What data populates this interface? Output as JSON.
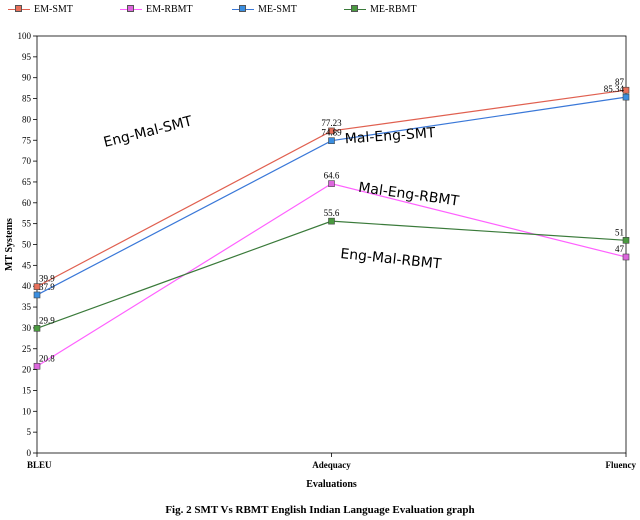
{
  "chart_data": {
    "type": "line",
    "title": "",
    "xlabel": "Evaluations",
    "ylabel": "MT Systems",
    "categories": [
      "BLEU",
      "Adequacy",
      "Fluency"
    ],
    "ylim": [
      0,
      100
    ],
    "yticks": [
      0,
      5,
      10,
      15,
      20,
      25,
      30,
      35,
      40,
      45,
      50,
      55,
      60,
      65,
      70,
      75,
      80,
      85,
      90,
      95,
      100
    ],
    "grid": false,
    "legend_position": "top-left",
    "series": [
      {
        "name": "EM-SMT",
        "color": "#e06050",
        "marker": "#e8705a",
        "values": [
          39.9,
          77.23,
          87
        ],
        "labels": [
          "39.9",
          "77.23",
          "87"
        ]
      },
      {
        "name": "EM-RBMT",
        "color": "#ff60ff",
        "marker": "#dd66dd",
        "values": [
          20.8,
          64.6,
          47
        ],
        "labels": [
          "20.8",
          "64.6",
          "47"
        ]
      },
      {
        "name": "ME-SMT",
        "color": "#3a78d8",
        "marker": "#3a8ee0",
        "values": [
          37.9,
          74.89,
          85.34
        ],
        "labels": [
          "37.9",
          "74.89",
          "85.34"
        ]
      },
      {
        "name": "ME-RBMT",
        "color": "#3a7a3a",
        "marker": "#4a9a40",
        "values": [
          29.9,
          55.6,
          51
        ],
        "labels": [
          "29.9",
          "55.6",
          "51"
        ]
      }
    ],
    "annotations": [
      {
        "text": "Eng-Mal-SMT",
        "x": 0.38,
        "y": 76,
        "rotate": -14
      },
      {
        "text": "Mal-Eng-SMT",
        "x": 1.2,
        "y": 75,
        "rotate": -4
      },
      {
        "text": "Mal-Eng-RBMT",
        "x": 1.26,
        "y": 61,
        "rotate": 8
      },
      {
        "text": "Eng-Mal-RBMT",
        "x": 1.2,
        "y": 45.5,
        "rotate": 6
      }
    ],
    "caption": "Fig. 2   SMT Vs RBMT English Indian Language Evaluation graph"
  }
}
